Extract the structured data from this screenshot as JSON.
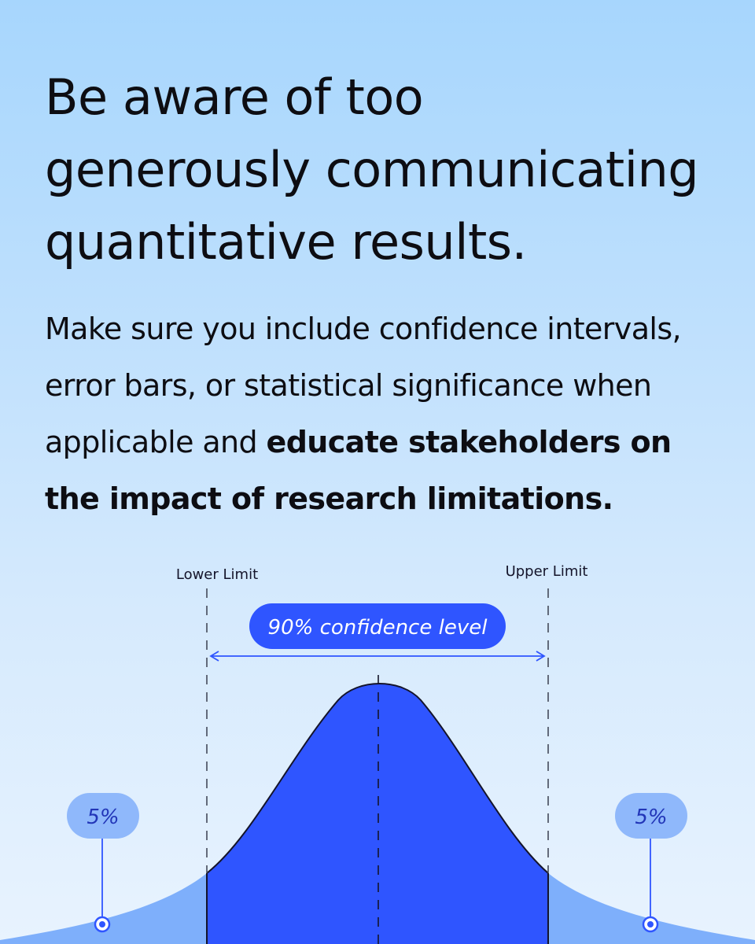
{
  "headline": [
    "Be aware of too",
    "generously communicating",
    "quantitative results."
  ],
  "body": {
    "line1": "Make sure you include confidence intervals,",
    "line2": "error bars, or statistical significance when",
    "line3_regular": "applicable and ",
    "line3_bold": "educate stakeholders on",
    "line4_bold": "the impact of research limitations."
  },
  "diagram": {
    "lower_limit_label": "Lower Limit",
    "upper_limit_label": "Upper Limit",
    "confidence_label": "90% confidence level",
    "left_tail_label": "5%",
    "right_tail_label": "5%",
    "colors": {
      "center_fill": "#2f55ff",
      "tail_fill": "#7eaffb",
      "pill_fill": "#2f55ff",
      "tail_pill_fill": "#8fb8fb",
      "tail_text": "#2236b8",
      "outline": "#14142a"
    }
  }
}
